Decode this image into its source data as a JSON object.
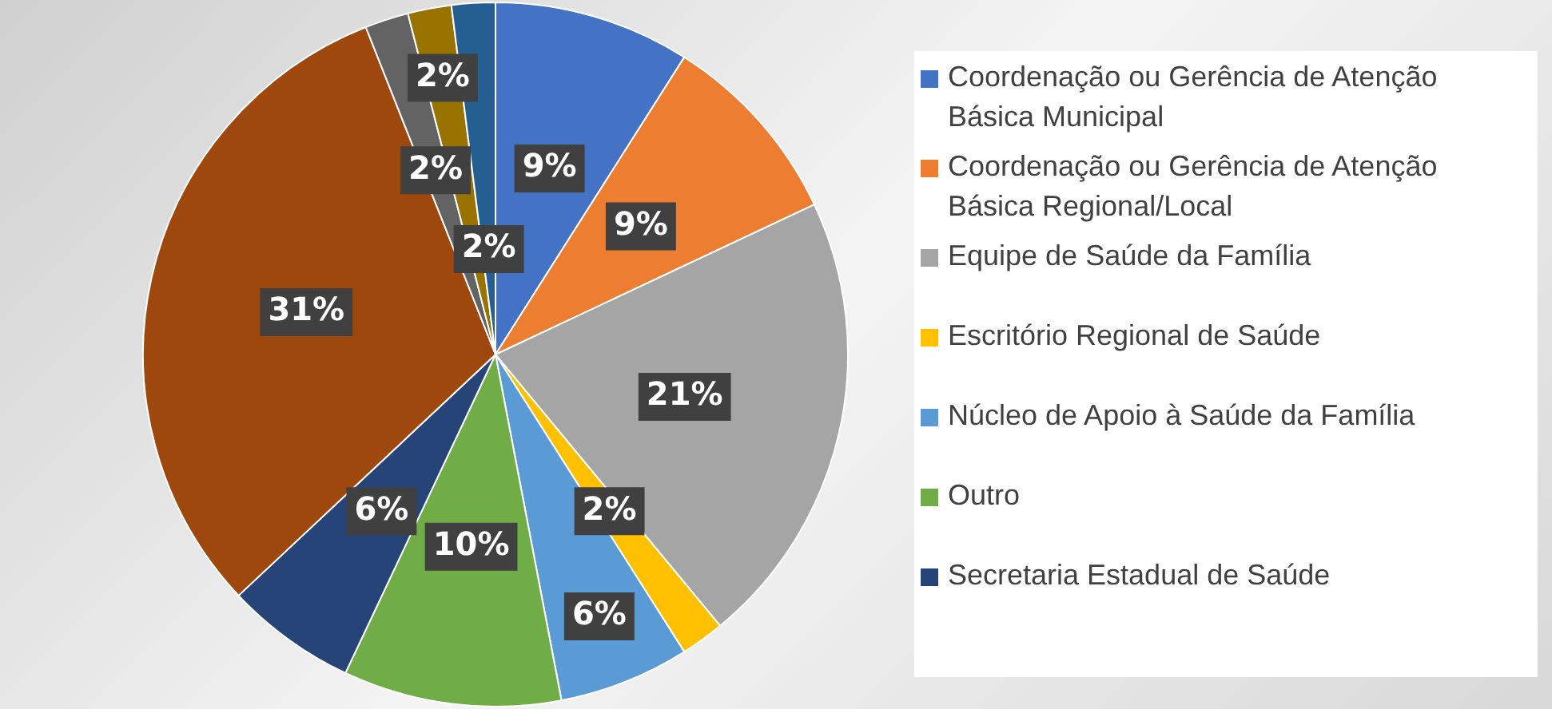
{
  "chart_data": {
    "type": "pie",
    "categories": [
      "Coordenação ou Gerência de Atenção Básica Municipal",
      "Coordenação ou Gerência de Atenção Básica Regional/Local",
      "Equipe de Saúde da Família",
      "Escritório Regional de Saúde",
      "Núcleo de Apoio à Saúde da Família",
      "Outro",
      "Secretaria Estadual de Saúde",
      null,
      null,
      null,
      null
    ],
    "values": [
      9,
      9,
      21,
      2,
      6,
      10,
      6,
      31,
      2,
      2,
      2
    ],
    "colors": [
      "#4472c4",
      "#ed7d31",
      "#a5a5a5",
      "#ffc000",
      "#5b9bd5",
      "#70ad47",
      "#264478",
      "#9e480e",
      "#636363",
      "#997300",
      "#255e91"
    ],
    "value_labels": [
      "9%",
      "9%",
      "21%",
      "2%",
      "6%",
      "10%",
      "6%",
      "31%",
      "2%",
      "2%",
      "2%"
    ],
    "legend": "right"
  }
}
